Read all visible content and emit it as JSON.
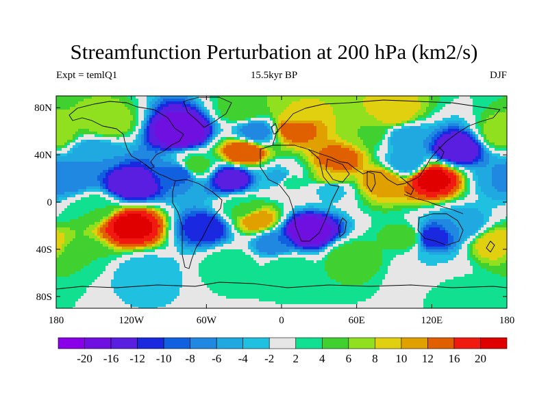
{
  "title": "Streamfunction Perturbation at 200 hPa (km2/s)",
  "subtitle_left": "Expt = temlQ1",
  "subtitle_center": "15.5kyr BP",
  "subtitle_right": "DJF",
  "chart_data": {
    "type": "contour-map",
    "projection": "cylindrical-equidistant",
    "variable": "streamfunction perturbation",
    "level": "200 hPa",
    "units": "km2/s",
    "lon_range": [
      -180,
      180
    ],
    "lat_range": [
      -90,
      90
    ],
    "x_tick_labels": [
      "180",
      "120W",
      "60W",
      "0",
      "60E",
      "120E",
      "180"
    ],
    "x_tick_values": [
      -180,
      -120,
      -60,
      0,
      60,
      120,
      180
    ],
    "y_tick_labels": [
      "80N",
      "40N",
      "0",
      "40S",
      "80S"
    ],
    "y_tick_values": [
      80,
      40,
      0,
      -40,
      -80
    ],
    "contour_levels": [
      -20,
      -16,
      -12,
      -10,
      -8,
      -6,
      -4,
      -2,
      2,
      4,
      6,
      8,
      10,
      12,
      16,
      20
    ],
    "colorbar_labels": [
      "-20",
      "-16",
      "-12",
      "-10",
      "-8",
      "-6",
      "-4",
      "-2",
      "2",
      "4",
      "6",
      "8",
      "10",
      "12",
      "16",
      "20"
    ],
    "colorbar_colors": [
      "#8a00e8",
      "#7010e0",
      "#5a1ee0",
      "#1a28e0",
      "#1060e0",
      "#2088e0",
      "#20a8e0",
      "#20c0e0",
      "#e6e6e6",
      "#10e090",
      "#40d030",
      "#90e020",
      "#e0d010",
      "#e0a000",
      "#e06000",
      "#f01a10",
      "#e00000"
    ],
    "centers": [
      {
        "lon": -140,
        "lat": 68,
        "value": 8
      },
      {
        "lon": -80,
        "lat": 60,
        "value": -20
      },
      {
        "lon": -150,
        "lat": 42,
        "value": -6
      },
      {
        "lon": -30,
        "lat": 78,
        "value": 6
      },
      {
        "lon": -20,
        "lat": 60,
        "value": -8
      },
      {
        "lon": 10,
        "lat": 75,
        "value": 8
      },
      {
        "lon": 10,
        "lat": 62,
        "value": 14
      },
      {
        "lon": 45,
        "lat": 35,
        "value": 14
      },
      {
        "lon": 70,
        "lat": 60,
        "value": 6
      },
      {
        "lon": 90,
        "lat": 75,
        "value": 10
      },
      {
        "lon": 100,
        "lat": 55,
        "value": -6
      },
      {
        "lon": 100,
        "lat": 33,
        "value": -6
      },
      {
        "lon": 140,
        "lat": 45,
        "value": -16
      },
      {
        "lon": 178,
        "lat": 58,
        "value": 8
      },
      {
        "lon": -30,
        "lat": 42,
        "value": 16
      },
      {
        "lon": -70,
        "lat": 30,
        "value": 6
      },
      {
        "lon": 0,
        "lat": 20,
        "value": -6
      },
      {
        "lon": 40,
        "lat": 12,
        "value": -4
      },
      {
        "lon": 120,
        "lat": 20,
        "value": 22
      },
      {
        "lon": 80,
        "lat": 18,
        "value": 12
      },
      {
        "lon": 40,
        "lat": 20,
        "value": 10
      },
      {
        "lon": 5,
        "lat": 18,
        "value": 4
      },
      {
        "lon": -120,
        "lat": 15,
        "value": -16
      },
      {
        "lon": -40,
        "lat": 20,
        "value": -14
      },
      {
        "lon": -80,
        "lat": 25,
        "value": -10
      },
      {
        "lon": -170,
        "lat": 20,
        "value": -8
      },
      {
        "lon": 178,
        "lat": 20,
        "value": -6
      },
      {
        "lon": -120,
        "lat": -20,
        "value": 22
      },
      {
        "lon": -160,
        "lat": -45,
        "value": 4
      },
      {
        "lon": -150,
        "lat": -5,
        "value": 4
      },
      {
        "lon": -60,
        "lat": -22,
        "value": -12
      },
      {
        "lon": -20,
        "lat": -15,
        "value": 12
      },
      {
        "lon": -30,
        "lat": -5,
        "value": 4
      },
      {
        "lon": 20,
        "lat": -25,
        "value": -20
      },
      {
        "lon": -5,
        "lat": -35,
        "value": -8
      },
      {
        "lon": 55,
        "lat": -48,
        "value": 6
      },
      {
        "lon": 100,
        "lat": -30,
        "value": 6
      },
      {
        "lon": 120,
        "lat": -30,
        "value": -12
      },
      {
        "lon": 145,
        "lat": -20,
        "value": -6
      },
      {
        "lon": 170,
        "lat": -35,
        "value": 10
      },
      {
        "lon": -110,
        "lat": -60,
        "value": -4
      },
      {
        "lon": -40,
        "lat": -52,
        "value": 4
      },
      {
        "lon": 5,
        "lat": -55,
        "value": 4
      },
      {
        "lon": 120,
        "lat": -55,
        "value": -2
      },
      {
        "lon": 140,
        "lat": -75,
        "value": 3
      }
    ]
  }
}
